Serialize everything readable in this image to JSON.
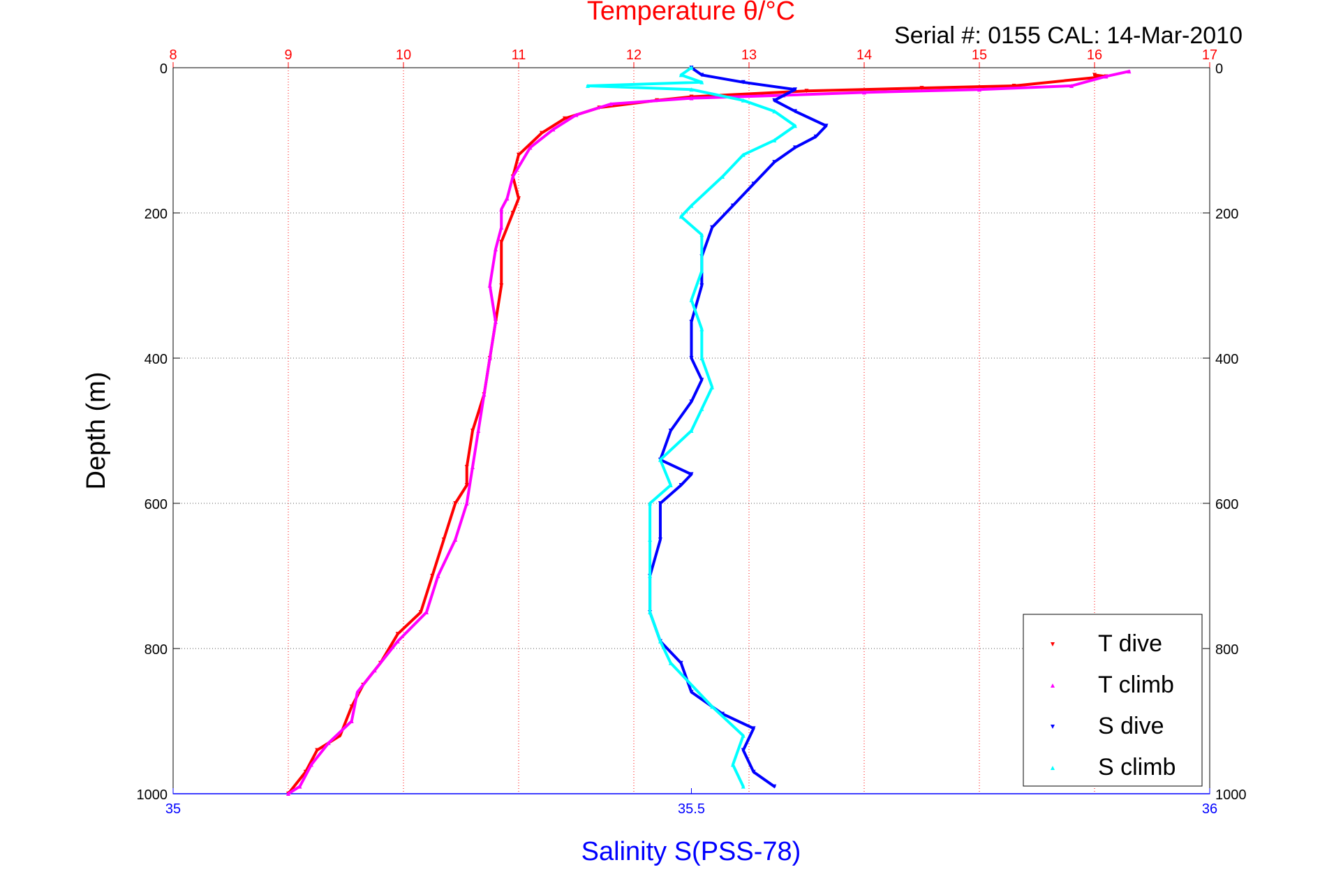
{
  "chart_data": {
    "type": "scatter",
    "title": "Temperature θ/°C",
    "subtitle": "Serial #: 0155  CAL: 14-Mar-2010",
    "ylabel": "Depth (m)",
    "xlabel": "Salinity S(PSS-78)",
    "x_top_label": "Temperature θ/°C",
    "ylim": [
      0,
      1000
    ],
    "y_reversed": true,
    "temp_lim": [
      8,
      17
    ],
    "sal_lim": [
      35,
      36
    ],
    "temp_ticks": [
      "8",
      "9",
      "10",
      "11",
      "12",
      "13",
      "14",
      "15",
      "16",
      "17"
    ],
    "sal_ticks": [
      "35",
      "35.5",
      "36"
    ],
    "depth_ticks": [
      "0",
      "200",
      "400",
      "600",
      "800",
      "1000"
    ],
    "grid": true,
    "legend_position": "bottom-right",
    "series": [
      {
        "name": "T dive",
        "axis": "temperature",
        "color": "#ff0000",
        "marker": "triangle-down",
        "points": [
          [
            16.0,
            10
          ],
          [
            16.1,
            12
          ],
          [
            15.3,
            25
          ],
          [
            14.5,
            28
          ],
          [
            13.5,
            32
          ],
          [
            12.5,
            40
          ],
          [
            12.2,
            45
          ],
          [
            11.7,
            55
          ],
          [
            11.4,
            70
          ],
          [
            11.2,
            90
          ],
          [
            11.0,
            120
          ],
          [
            10.95,
            150
          ],
          [
            11.0,
            180
          ],
          [
            10.95,
            200
          ],
          [
            10.85,
            240
          ],
          [
            10.85,
            300
          ],
          [
            10.8,
            350
          ],
          [
            10.75,
            400
          ],
          [
            10.7,
            450
          ],
          [
            10.6,
            500
          ],
          [
            10.55,
            550
          ],
          [
            10.55,
            575
          ],
          [
            10.45,
            600
          ],
          [
            10.35,
            650
          ],
          [
            10.25,
            700
          ],
          [
            10.15,
            750
          ],
          [
            9.95,
            780
          ],
          [
            9.8,
            820
          ],
          [
            9.65,
            850
          ],
          [
            9.55,
            880
          ],
          [
            9.45,
            920
          ],
          [
            9.25,
            940
          ],
          [
            9.15,
            970
          ],
          [
            9.0,
            1000
          ]
        ]
      },
      {
        "name": "T climb",
        "axis": "temperature",
        "color": "#ff00ff",
        "marker": "triangle-up",
        "points": [
          [
            16.3,
            5
          ],
          [
            16.1,
            12
          ],
          [
            15.8,
            25
          ],
          [
            15.0,
            30
          ],
          [
            14.0,
            34
          ],
          [
            13.3,
            38
          ],
          [
            12.5,
            42
          ],
          [
            11.8,
            50
          ],
          [
            11.5,
            65
          ],
          [
            11.3,
            85
          ],
          [
            11.1,
            110
          ],
          [
            10.95,
            150
          ],
          [
            10.9,
            180
          ],
          [
            10.85,
            195
          ],
          [
            10.85,
            220
          ],
          [
            10.8,
            250
          ],
          [
            10.75,
            300
          ],
          [
            10.8,
            350
          ],
          [
            10.75,
            400
          ],
          [
            10.7,
            450
          ],
          [
            10.65,
            500
          ],
          [
            10.6,
            550
          ],
          [
            10.55,
            600
          ],
          [
            10.45,
            650
          ],
          [
            10.3,
            700
          ],
          [
            10.2,
            750
          ],
          [
            9.95,
            790
          ],
          [
            9.75,
            830
          ],
          [
            9.6,
            860
          ],
          [
            9.55,
            900
          ],
          [
            9.35,
            930
          ],
          [
            9.2,
            960
          ],
          [
            9.1,
            990
          ],
          [
            9.0,
            1000
          ]
        ]
      },
      {
        "name": "S dive",
        "axis": "salinity",
        "color": "#0000ff",
        "marker": "triangle-down",
        "points": [
          [
            35.5,
            0
          ],
          [
            35.51,
            10
          ],
          [
            35.55,
            20
          ],
          [
            35.6,
            30
          ],
          [
            35.58,
            45
          ],
          [
            35.6,
            60
          ],
          [
            35.63,
            80
          ],
          [
            35.62,
            95
          ],
          [
            35.6,
            110
          ],
          [
            35.58,
            130
          ],
          [
            35.56,
            160
          ],
          [
            35.54,
            190
          ],
          [
            35.52,
            220
          ],
          [
            35.51,
            260
          ],
          [
            35.51,
            300
          ],
          [
            35.5,
            350
          ],
          [
            35.5,
            400
          ],
          [
            35.51,
            430
          ],
          [
            35.5,
            460
          ],
          [
            35.48,
            500
          ],
          [
            35.47,
            540
          ],
          [
            35.5,
            560
          ],
          [
            35.49,
            575
          ],
          [
            35.47,
            600
          ],
          [
            35.47,
            650
          ],
          [
            35.46,
            700
          ],
          [
            35.46,
            750
          ],
          [
            35.47,
            790
          ],
          [
            35.49,
            820
          ],
          [
            35.5,
            860
          ],
          [
            35.53,
            890
          ],
          [
            35.56,
            910
          ],
          [
            35.55,
            940
          ],
          [
            35.56,
            970
          ],
          [
            35.58,
            990
          ]
        ]
      },
      {
        "name": "S climb",
        "axis": "salinity",
        "color": "#00ffff",
        "marker": "triangle-up",
        "points": [
          [
            35.5,
            0
          ],
          [
            35.49,
            10
          ],
          [
            35.51,
            20
          ],
          [
            35.4,
            25
          ],
          [
            35.5,
            30
          ],
          [
            35.55,
            45
          ],
          [
            35.58,
            60
          ],
          [
            35.6,
            80
          ],
          [
            35.58,
            100
          ],
          [
            35.55,
            120
          ],
          [
            35.53,
            150
          ],
          [
            35.5,
            190
          ],
          [
            35.49,
            205
          ],
          [
            35.51,
            230
          ],
          [
            35.51,
            280
          ],
          [
            35.5,
            320
          ],
          [
            35.51,
            360
          ],
          [
            35.51,
            400
          ],
          [
            35.52,
            440
          ],
          [
            35.51,
            470
          ],
          [
            35.5,
            500
          ],
          [
            35.47,
            540
          ],
          [
            35.48,
            575
          ],
          [
            35.46,
            600
          ],
          [
            35.46,
            650
          ],
          [
            35.46,
            700
          ],
          [
            35.46,
            750
          ],
          [
            35.47,
            790
          ],
          [
            35.48,
            820
          ],
          [
            35.52,
            880
          ],
          [
            35.55,
            920
          ],
          [
            35.54,
            960
          ],
          [
            35.55,
            990
          ]
        ]
      }
    ]
  }
}
